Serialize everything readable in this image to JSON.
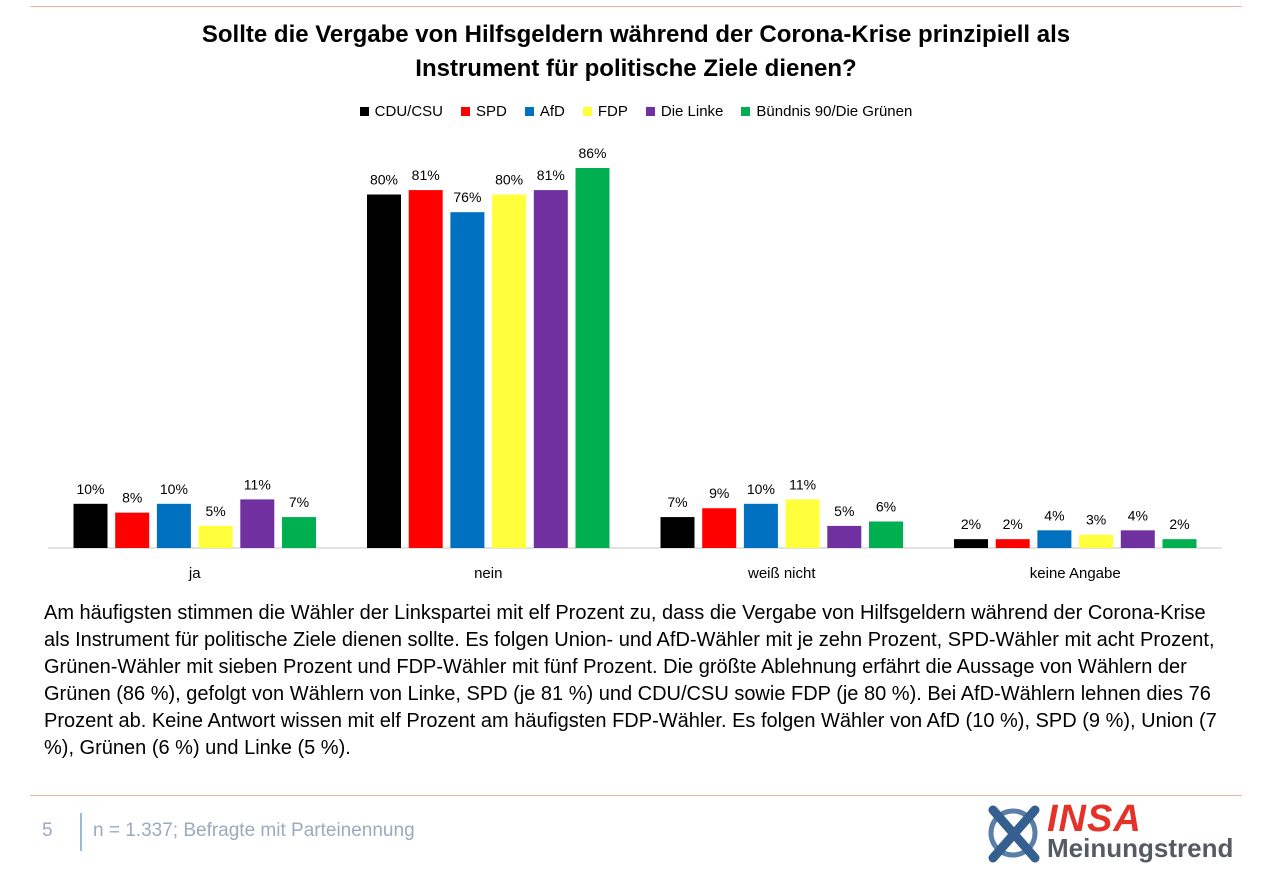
{
  "chart_data": {
    "type": "bar",
    "title": "Sollte die Vergabe von Hilfsgeldern während der Corona-Krise prinzipiell als Instrument für politische Ziele dienen?",
    "title_line1": "Sollte die Vergabe von Hilfsgeldern während der Corona-Krise prinzipiell als",
    "title_line2": "Instrument für politische Ziele dienen?",
    "categories": [
      "ja",
      "nein",
      "weiß nicht",
      "keine Angabe"
    ],
    "series": [
      {
        "name": "CDU/CSU",
        "color": "#000000",
        "values": [
          10,
          80,
          7,
          2
        ]
      },
      {
        "name": "SPD",
        "color": "#ff0000",
        "values": [
          8,
          81,
          9,
          2
        ]
      },
      {
        "name": "AfD",
        "color": "#0070c0",
        "values": [
          10,
          76,
          10,
          4
        ]
      },
      {
        "name": "FDP",
        "color": "#ffff3c",
        "values": [
          5,
          80,
          11,
          3
        ]
      },
      {
        "name": "Die Linke",
        "color": "#7030a0",
        "values": [
          11,
          81,
          5,
          4
        ]
      },
      {
        "name": "Bündnis 90/Die Grünen",
        "color": "#00b050",
        "values": [
          7,
          86,
          6,
          2
        ]
      }
    ],
    "value_suffix": "%",
    "ylim": [
      0,
      86
    ],
    "legend_position": "top-center",
    "grid": false
  },
  "summary": "Am häufigsten stimmen die Wähler der Linkspartei mit elf Prozent zu, dass die Vergabe von Hilfsgeldern während der Corona-Krise als Instrument für politische Ziele dienen sollte. Es folgen Union- und AfD-Wähler mit je zehn Prozent, SPD-Wähler mit acht Prozent, Grünen-Wähler mit sieben Prozent und FDP-Wähler mit fünf Prozent. Die größte Ablehnung erfährt die Aussage von Wählern der Grünen (86 %), gefolgt von Wählern von Linke, SPD (je 81 %) und CDU/CSU sowie FDP (je 80 %). Bei AfD-Wählern lehnen dies 76 Prozent ab. Keine Antwort wissen mit elf Prozent am häufigsten FDP-Wähler. Es folgen Wähler von AfD (10 %), SPD (9 %), Union (7 %), Grünen (6 %) und Linke (5 %).",
  "footer": {
    "page_number": "5",
    "note": "n = 1.337; Befragte mit Parteinennung"
  },
  "logo": {
    "brand": "INSA",
    "subtitle": "Meinungstrend"
  }
}
